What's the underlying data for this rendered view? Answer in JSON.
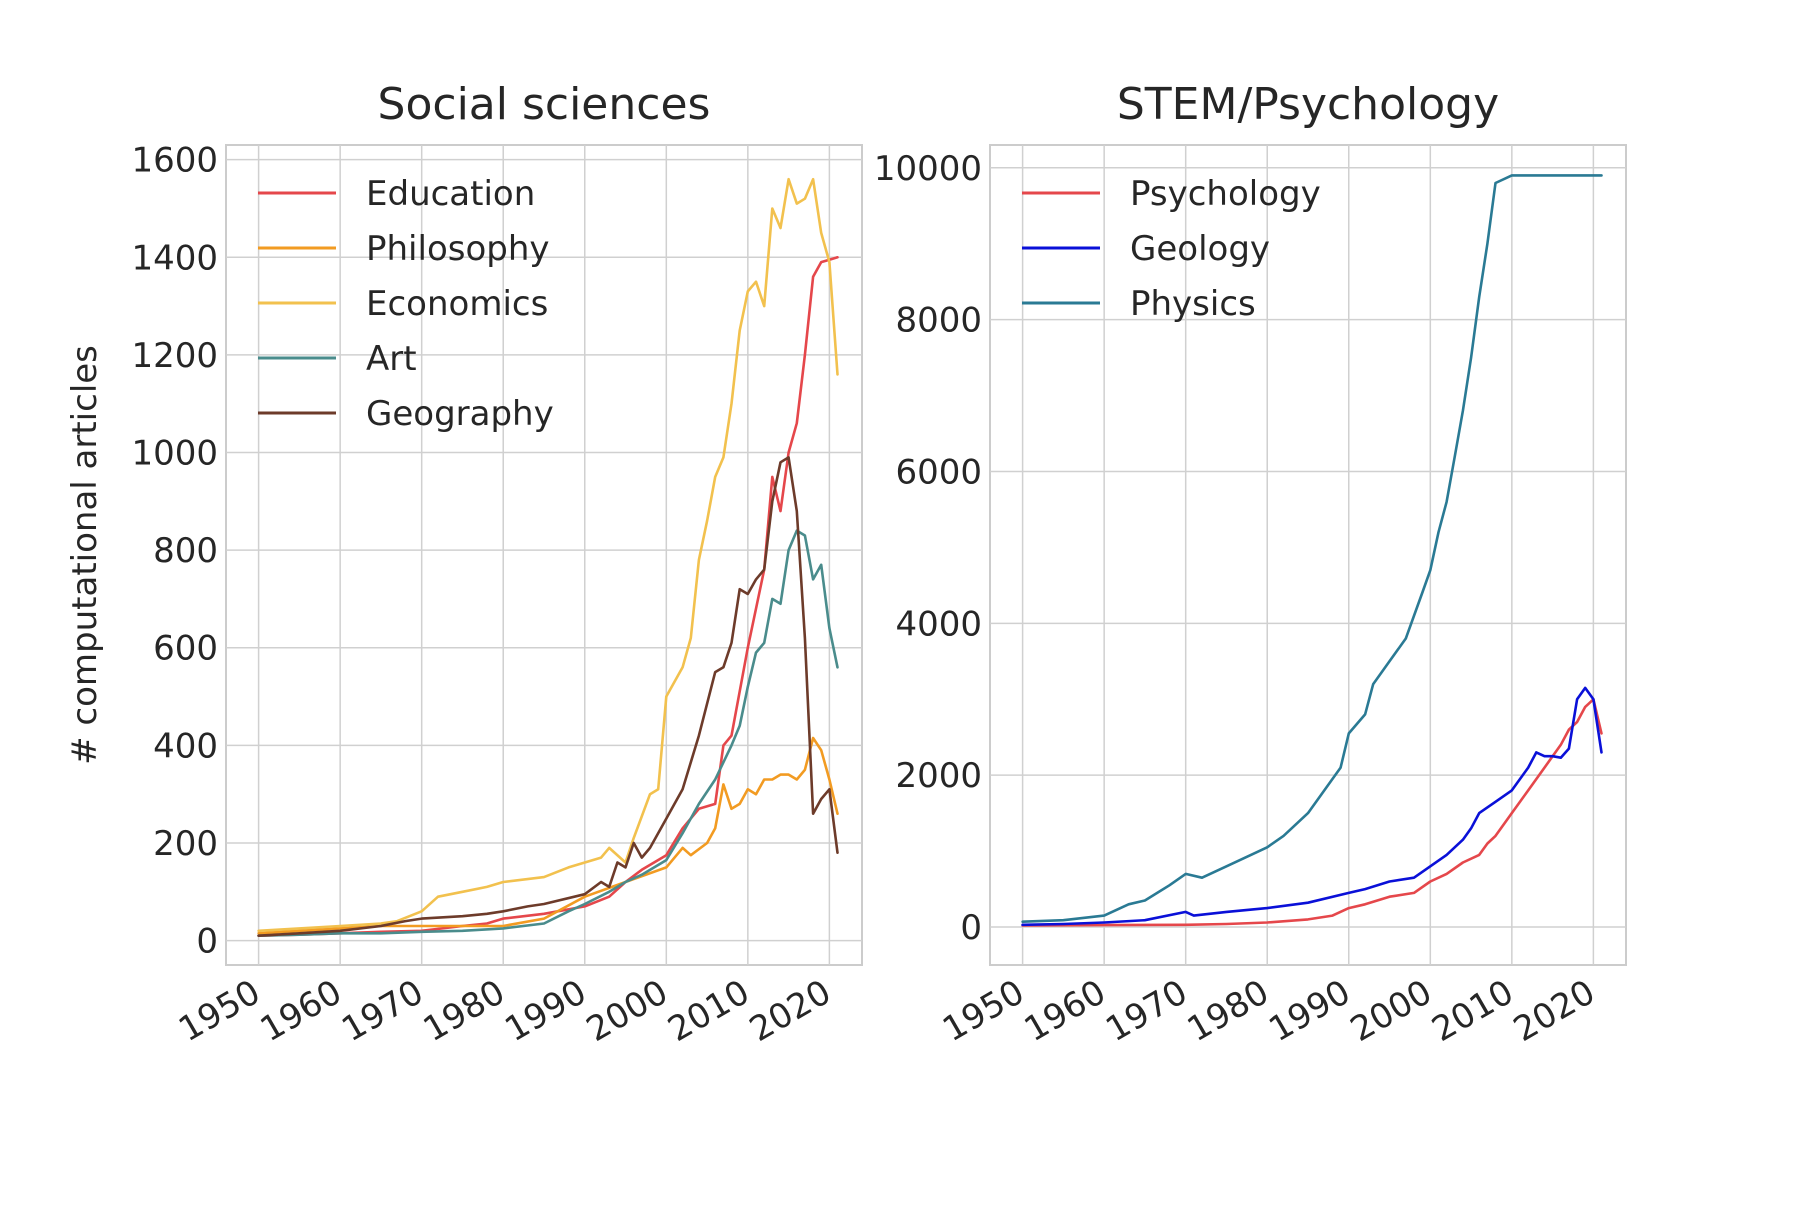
{
  "chart_data": [
    {
      "type": "line",
      "title": "Social sciences",
      "xlabel": "",
      "ylabel": "# computational articles",
      "xlim": [
        1946,
        2024
      ],
      "ylim": [
        -50,
        1630
      ],
      "xticks": [
        1950,
        1960,
        1970,
        1980,
        1990,
        2000,
        2010,
        2020
      ],
      "yticks": [
        0,
        200,
        400,
        600,
        800,
        1000,
        1200,
        1400,
        1600
      ],
      "grid": true,
      "legend_position": "top-left",
      "series": [
        {
          "name": "Education",
          "color": "#e5474b",
          "x": [
            1950,
            1955,
            1960,
            1965,
            1970,
            1975,
            1978,
            1980,
            1985,
            1990,
            1993,
            1995,
            1997,
            2000,
            2002,
            2004,
            2006,
            2007,
            2008,
            2010,
            2012,
            2013,
            2014,
            2015,
            2016,
            2017,
            2018,
            2019,
            2020,
            2021
          ],
          "y": [
            10,
            12,
            15,
            18,
            20,
            30,
            35,
            45,
            55,
            70,
            90,
            120,
            145,
            175,
            230,
            270,
            280,
            400,
            420,
            600,
            760,
            950,
            880,
            1000,
            1060,
            1200,
            1360,
            1390,
            1395,
            1400
          ]
        },
        {
          "name": "Philosophy",
          "color": "#f29b22",
          "x": [
            1950,
            1955,
            1960,
            1965,
            1970,
            1975,
            1980,
            1985,
            1990,
            1995,
            2000,
            2002,
            2003,
            2005,
            2006,
            2007,
            2008,
            2009,
            2010,
            2011,
            2012,
            2013,
            2014,
            2015,
            2016,
            2017,
            2018,
            2019,
            2020,
            2021
          ],
          "y": [
            15,
            20,
            25,
            30,
            30,
            30,
            30,
            45,
            90,
            120,
            150,
            190,
            175,
            200,
            230,
            320,
            270,
            280,
            310,
            300,
            330,
            330,
            340,
            340,
            330,
            350,
            415,
            390,
            330,
            260
          ]
        },
        {
          "name": "Economics",
          "color": "#f2c14e",
          "x": [
            1950,
            1955,
            1960,
            1965,
            1967,
            1970,
            1972,
            1975,
            1978,
            1980,
            1985,
            1988,
            1990,
            1992,
            1993,
            1995,
            1996,
            1998,
            1999,
            2000,
            2002,
            2003,
            2004,
            2005,
            2006,
            2007,
            2008,
            2009,
            2010,
            2011,
            2012,
            2013,
            2014,
            2015,
            2016,
            2017,
            2018,
            2019,
            2020,
            2021
          ],
          "y": [
            20,
            25,
            30,
            35,
            40,
            60,
            90,
            100,
            110,
            120,
            130,
            150,
            160,
            170,
            190,
            160,
            210,
            300,
            310,
            500,
            560,
            620,
            780,
            860,
            950,
            990,
            1100,
            1250,
            1330,
            1350,
            1300,
            1500,
            1460,
            1560,
            1510,
            1520,
            1560,
            1450,
            1390,
            1160
          ]
        },
        {
          "name": "Art",
          "color": "#4a8c8c",
          "x": [
            1950,
            1955,
            1960,
            1965,
            1970,
            1975,
            1980,
            1985,
            1988,
            1990,
            1993,
            1995,
            1997,
            2000,
            2002,
            2004,
            2006,
            2008,
            2009,
            2010,
            2011,
            2012,
            2013,
            2014,
            2015,
            2016,
            2017,
            2018,
            2019,
            2020,
            2021
          ],
          "y": [
            10,
            12,
            15,
            15,
            18,
            20,
            25,
            35,
            60,
            75,
            100,
            120,
            135,
            165,
            220,
            280,
            330,
            400,
            440,
            520,
            590,
            610,
            700,
            690,
            800,
            840,
            830,
            740,
            770,
            640,
            560
          ]
        },
        {
          "name": "Geography",
          "color": "#6d3b2a",
          "x": [
            1950,
            1955,
            1960,
            1965,
            1968,
            1970,
            1975,
            1978,
            1980,
            1983,
            1985,
            1990,
            1992,
            1993,
            1994,
            1995,
            1996,
            1997,
            1998,
            2000,
            2002,
            2004,
            2006,
            2007,
            2008,
            2009,
            2010,
            2011,
            2012,
            2013,
            2014,
            2015,
            2016,
            2017,
            2018,
            2019,
            2020,
            2021
          ],
          "y": [
            10,
            15,
            20,
            30,
            40,
            45,
            50,
            55,
            60,
            70,
            75,
            95,
            120,
            110,
            160,
            150,
            200,
            170,
            190,
            250,
            310,
            420,
            550,
            560,
            610,
            720,
            710,
            740,
            760,
            900,
            980,
            990,
            880,
            620,
            260,
            290,
            310,
            180
          ]
        }
      ]
    },
    {
      "type": "line",
      "title": "STEM/Psychology",
      "xlabel": "",
      "ylabel": "",
      "xlim": [
        1946,
        2024
      ],
      "ylim": [
        -500,
        10300
      ],
      "xticks": [
        1950,
        1960,
        1970,
        1980,
        1990,
        2000,
        2010,
        2020
      ],
      "yticks": [
        0,
        2000,
        4000,
        6000,
        8000,
        10000
      ],
      "grid": true,
      "legend_position": "top-left",
      "series": [
        {
          "name": "Psychology",
          "color": "#e5474b",
          "x": [
            1950,
            1960,
            1970,
            1975,
            1980,
            1985,
            1988,
            1990,
            1992,
            1995,
            1998,
            2000,
            2002,
            2004,
            2006,
            2007,
            2008,
            2010,
            2012,
            2014,
            2016,
            2017,
            2018,
            2019,
            2020,
            2021
          ],
          "y": [
            20,
            25,
            30,
            40,
            60,
            100,
            150,
            250,
            300,
            400,
            450,
            600,
            700,
            850,
            950,
            1100,
            1200,
            1500,
            1800,
            2100,
            2400,
            2600,
            2700,
            2900,
            3000,
            2550
          ]
        },
        {
          "name": "Geology",
          "color": "#0a10d8",
          "x": [
            1950,
            1955,
            1960,
            1965,
            1970,
            1971,
            1975,
            1980,
            1985,
            1990,
            1992,
            1995,
            1998,
            2000,
            2002,
            2004,
            2005,
            2006,
            2008,
            2010,
            2012,
            2013,
            2014,
            2015,
            2016,
            2017,
            2018,
            2019,
            2020,
            2021
          ],
          "y": [
            30,
            40,
            60,
            90,
            200,
            150,
            200,
            250,
            320,
            450,
            500,
            600,
            650,
            800,
            950,
            1150,
            1300,
            1500,
            1650,
            1800,
            2100,
            2300,
            2250,
            2250,
            2230,
            2350,
            3000,
            3150,
            3000,
            2300
          ]
        },
        {
          "name": "Physics",
          "color": "#2a7a94",
          "x": [
            1950,
            1955,
            1960,
            1963,
            1965,
            1968,
            1970,
            1972,
            1975,
            1978,
            1980,
            1982,
            1985,
            1987,
            1989,
            1990,
            1992,
            1993,
            1995,
            1997,
            1999,
            2000,
            2001,
            2002,
            2003,
            2004,
            2005,
            2006,
            2007,
            2008,
            2010,
            2015,
            2020,
            2021
          ],
          "y": [
            70,
            90,
            150,
            300,
            350,
            550,
            700,
            650,
            800,
            950,
            1050,
            1200,
            1500,
            1800,
            2100,
            2550,
            2800,
            3200,
            3500,
            3800,
            4400,
            4700,
            5200,
            5600,
            6200,
            6800,
            7500,
            8300,
            9000,
            9800,
            9900,
            9900,
            9900,
            9900
          ]
        }
      ]
    }
  ]
}
